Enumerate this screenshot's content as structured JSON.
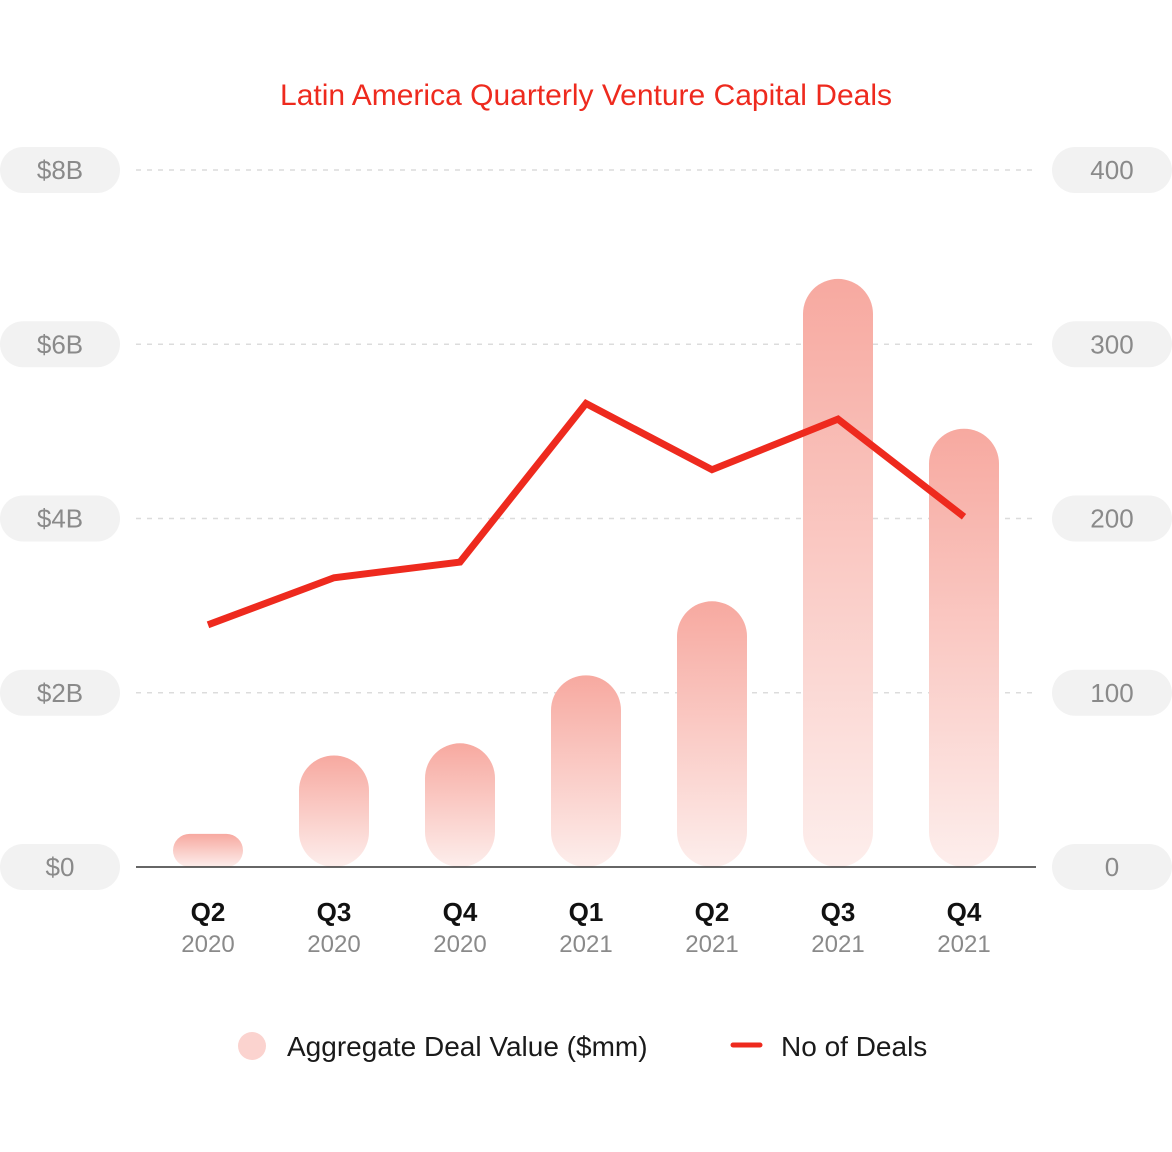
{
  "chart_data": {
    "type": "bar",
    "title": "Latin America Quarterly Venture Capital Deals",
    "categories": [
      {
        "quarter": "Q2",
        "year": "2020"
      },
      {
        "quarter": "Q3",
        "year": "2020"
      },
      {
        "quarter": "Q4",
        "year": "2020"
      },
      {
        "quarter": "Q1",
        "year": "2021"
      },
      {
        "quarter": "Q2",
        "year": "2021"
      },
      {
        "quarter": "Q3",
        "year": "2021"
      },
      {
        "quarter": "Q4",
        "year": "2021"
      }
    ],
    "left_axis": {
      "ticks": [
        "$0",
        "$2B",
        "$4B",
        "$6B",
        "$8B"
      ],
      "ylim": [
        0,
        8000
      ]
    },
    "right_axis": {
      "ticks": [
        "0",
        "100",
        "200",
        "300",
        "400"
      ],
      "ylim": [
        0,
        400
      ]
    },
    "series": [
      {
        "name": "Aggregate Deal Value ($mm)",
        "type": "bar",
        "axis": "left",
        "values": [
          380,
          1280,
          1420,
          2200,
          3050,
          6750,
          5030
        ],
        "color": "#f7a9a0"
      },
      {
        "name": "No of Deals",
        "type": "line",
        "axis": "right",
        "values": [
          139,
          166,
          175,
          266,
          228,
          257,
          201
        ],
        "color": "#ee2a1e"
      }
    ],
    "grid": true,
    "legend": "bottom-center"
  }
}
